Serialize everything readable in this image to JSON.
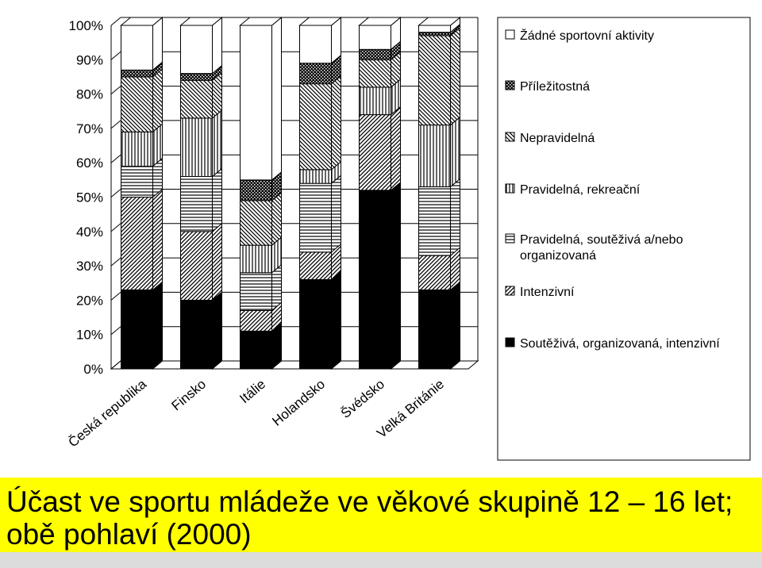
{
  "caption": {
    "line1": "Účast ve sportu mládeže ve věkové skupině 12 – 16 let;",
    "line2": "obě pohlaví (2000)"
  },
  "chart_data": {
    "type": "bar",
    "stacked": true,
    "percent": true,
    "three_d": true,
    "ylim": [
      0,
      100
    ],
    "yticks": [
      "0%",
      "10%",
      "20%",
      "30%",
      "40%",
      "50%",
      "60%",
      "70%",
      "80%",
      "90%",
      "100%"
    ],
    "grid": true,
    "legend_position": "right",
    "categories": [
      "Česká republika",
      "Finsko",
      "Itálie",
      "Holandsko",
      "Švédsko",
      "Velká Británie"
    ],
    "series": [
      {
        "name": "Soutěživá, organizovaná, intenzivní",
        "pattern": "solid",
        "values": [
          23,
          20,
          11,
          26,
          52,
          23
        ]
      },
      {
        "name": "Intenzivní",
        "pattern": "diagonal",
        "values": [
          27,
          20,
          6,
          8,
          22,
          10
        ]
      },
      {
        "name": "Pravidelná, soutěživá a/nebo organizovaná",
        "pattern": "horizontal",
        "values": [
          9,
          16,
          11,
          20,
          0,
          20
        ]
      },
      {
        "name": "Pravidelná, rekreační",
        "pattern": "vertical",
        "values": [
          10,
          17,
          8,
          4,
          8,
          18
        ]
      },
      {
        "name": "Nepravidelná",
        "pattern": "backdiagonal",
        "values": [
          16,
          11,
          13,
          25,
          8,
          26
        ]
      },
      {
        "name": "Příležitostná",
        "pattern": "dotted",
        "values": [
          2,
          2,
          6,
          6,
          3,
          1
        ]
      },
      {
        "name": "Žádné sportovní aktivity",
        "pattern": "white",
        "values": [
          13,
          14,
          45,
          11,
          7,
          2
        ]
      }
    ]
  }
}
